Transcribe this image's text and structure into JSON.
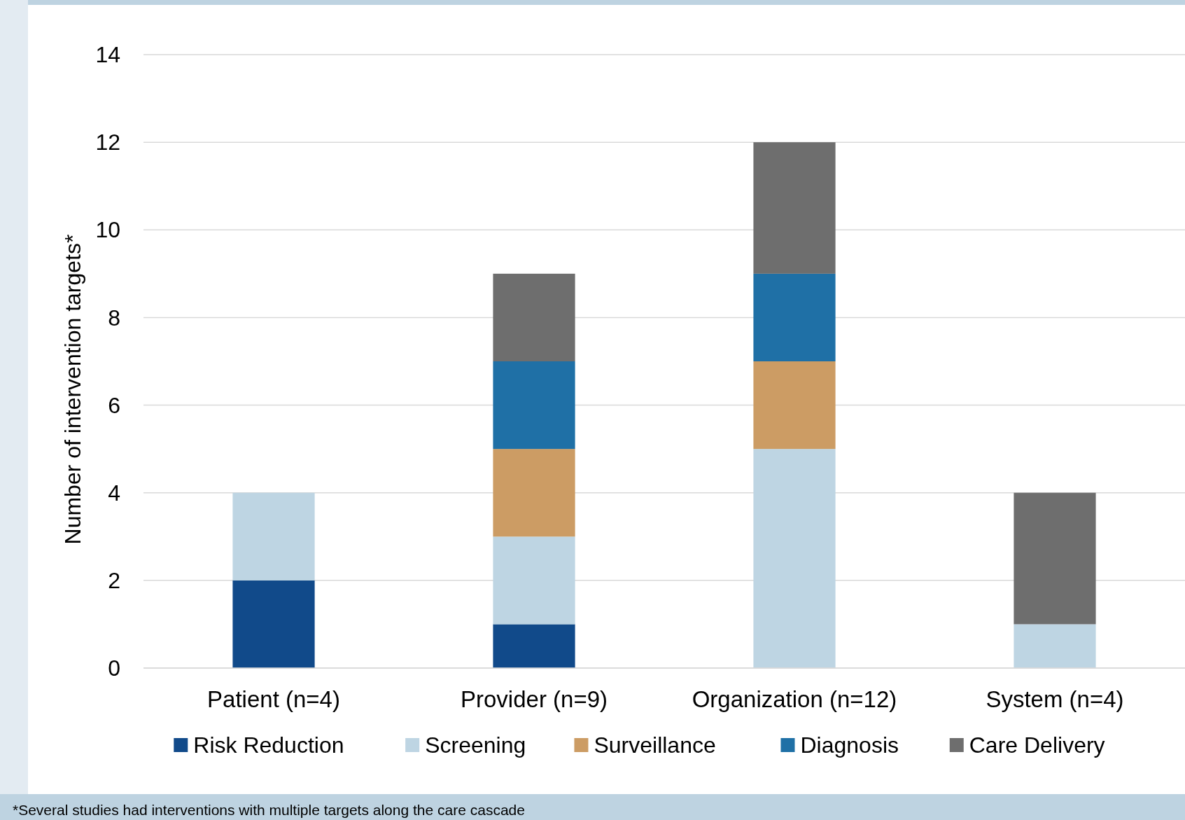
{
  "chart_data": {
    "type": "bar",
    "stacked": true,
    "ylabel": "Number of intervention targets*",
    "categories": [
      "Patient (n=4)",
      "Provider (n=9)",
      "Organization (n=12)",
      "System (n=4)"
    ],
    "series": [
      {
        "name": "Risk Reduction",
        "color": "#114a8a",
        "values": [
          2,
          1,
          0,
          0
        ]
      },
      {
        "name": "Screening",
        "color": "#bed5e3",
        "values": [
          2,
          2,
          5,
          1
        ]
      },
      {
        "name": "Surveillance",
        "color": "#cc9c64",
        "values": [
          0,
          2,
          2,
          0
        ]
      },
      {
        "name": "Diagnosis",
        "color": "#1f70a6",
        "values": [
          0,
          2,
          2,
          0
        ]
      },
      {
        "name": "Care Delivery",
        "color": "#6e6e6e",
        "values": [
          0,
          2,
          3,
          3
        ]
      }
    ],
    "ylim": [
      0,
      14
    ],
    "yticks": [
      0,
      2,
      4,
      6,
      8,
      10,
      12,
      14
    ],
    "grid": "y",
    "legend": "bottom",
    "annotations": [
      "*Several studies had interventions with multiple targets along the care cascade"
    ]
  }
}
